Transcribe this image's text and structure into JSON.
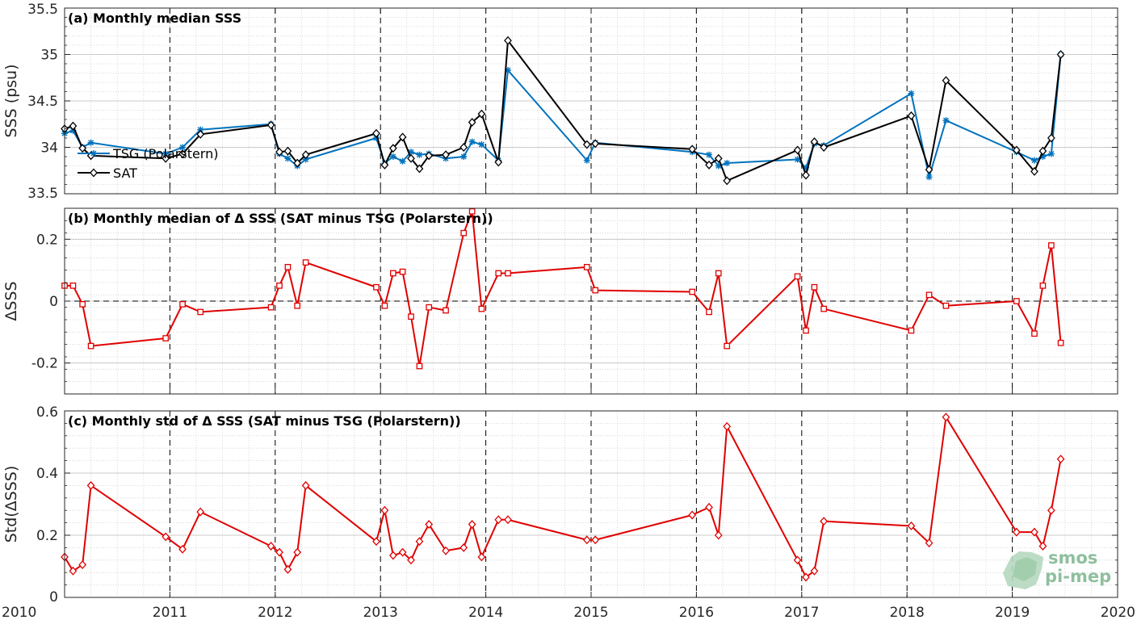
{
  "chart_data": [
    {
      "type": "line",
      "title": "(a) Monthly median SSS",
      "xlabel": "",
      "ylabel": "SSS (psu)",
      "xlim": [
        2010,
        2020
      ],
      "ylim": [
        33.5,
        35.5
      ],
      "yticks": [
        "33.5",
        "34",
        "34.5",
        "35",
        "35.5"
      ],
      "grid": true,
      "legend_placement": "bottom-left",
      "series": [
        {
          "name": "TSG (Polarstern)",
          "color": "#0072BD",
          "marker": "asterisk",
          "x": [
            2010.0,
            2010.08,
            2010.17,
            2010.25,
            2010.96,
            2011.12,
            2011.29,
            2011.96,
            2012.04,
            2012.12,
            2012.21,
            2012.29,
            2012.96,
            2013.04,
            2013.12,
            2013.21,
            2013.29,
            2013.37,
            2013.46,
            2013.62,
            2013.79,
            2013.87,
            2013.96,
            2014.12,
            2014.21,
            2014.96,
            2015.04,
            2015.96,
            2016.12,
            2016.21,
            2016.29,
            2016.96,
            2017.04,
            2017.12,
            2017.21,
            2018.04,
            2018.21,
            2018.37,
            2019.04,
            2019.21,
            2019.29,
            2019.37,
            2019.46
          ],
          "values": [
            34.15,
            34.18,
            34.0,
            34.05,
            33.93,
            34.0,
            34.19,
            34.25,
            33.93,
            33.88,
            33.8,
            33.87,
            34.1,
            33.83,
            33.9,
            33.85,
            33.95,
            33.92,
            33.93,
            33.88,
            33.9,
            34.06,
            34.03,
            33.86,
            34.83,
            33.86,
            34.05,
            33.95,
            33.92,
            33.8,
            33.83,
            33.87,
            33.78,
            34.04,
            34.02,
            34.58,
            33.68,
            34.29,
            33.95,
            33.86,
            33.9,
            33.93,
            35.0
          ]
        },
        {
          "name": "SAT",
          "color": "#000000",
          "marker": "diamond",
          "x": [
            2010.0,
            2010.08,
            2010.17,
            2010.25,
            2010.96,
            2011.12,
            2011.29,
            2011.96,
            2012.04,
            2012.12,
            2012.21,
            2012.29,
            2012.96,
            2013.04,
            2013.12,
            2013.21,
            2013.29,
            2013.37,
            2013.46,
            2013.62,
            2013.79,
            2013.87,
            2013.96,
            2014.12,
            2014.21,
            2014.96,
            2015.04,
            2015.96,
            2016.12,
            2016.21,
            2016.29,
            2016.96,
            2017.04,
            2017.12,
            2017.21,
            2018.04,
            2018.21,
            2018.37,
            2019.04,
            2019.21,
            2019.29,
            2019.37,
            2019.46
          ],
          "values": [
            34.2,
            34.23,
            33.99,
            33.91,
            33.88,
            33.93,
            34.14,
            34.24,
            33.95,
            33.96,
            33.83,
            33.92,
            34.15,
            33.81,
            33.99,
            34.11,
            33.88,
            33.77,
            33.91,
            33.92,
            34.0,
            34.27,
            34.36,
            33.84,
            35.15,
            34.03,
            34.04,
            33.98,
            33.81,
            33.88,
            33.64,
            33.97,
            33.7,
            34.06,
            34.0,
            34.34,
            33.76,
            34.72,
            33.97,
            33.74,
            33.96,
            34.1,
            35.0
          ]
        }
      ]
    },
    {
      "type": "line",
      "title": "(b) Monthly median of Δ SSS (SAT minus TSG (Polarstern))",
      "xlabel": "",
      "ylabel": "ΔSSS",
      "xlim": [
        2010,
        2020
      ],
      "ylim": [
        -0.3,
        0.3
      ],
      "yticks": [
        "-0.2",
        "0",
        "0.2"
      ],
      "grid": true,
      "zero_line": true,
      "series": [
        {
          "color": "#E00000",
          "marker": "square",
          "x": [
            2010.0,
            2010.08,
            2010.17,
            2010.25,
            2010.96,
            2011.12,
            2011.29,
            2011.96,
            2012.04,
            2012.12,
            2012.21,
            2012.29,
            2012.96,
            2013.04,
            2013.12,
            2013.21,
            2013.29,
            2013.37,
            2013.46,
            2013.62,
            2013.79,
            2013.87,
            2013.96,
            2014.12,
            2014.21,
            2014.96,
            2015.04,
            2015.96,
            2016.12,
            2016.21,
            2016.29,
            2016.96,
            2017.04,
            2017.12,
            2017.21,
            2018.04,
            2018.21,
            2018.37,
            2019.04,
            2019.21,
            2019.29,
            2019.37,
            2019.46
          ],
          "values": [
            0.05,
            0.05,
            -0.01,
            -0.145,
            -0.12,
            -0.01,
            -0.035,
            -0.02,
            0.05,
            0.11,
            -0.015,
            0.125,
            0.045,
            -0.015,
            0.09,
            0.095,
            -0.05,
            -0.21,
            -0.02,
            -0.03,
            0.22,
            0.29,
            -0.025,
            0.09,
            0.09,
            0.11,
            0.035,
            0.03,
            -0.035,
            0.09,
            -0.145,
            0.08,
            -0.095,
            0.045,
            -0.025,
            -0.095,
            0.02,
            -0.015,
            0.0,
            -0.105,
            0.05,
            0.18,
            -0.135
          ]
        }
      ]
    },
    {
      "type": "line",
      "title": "(c) Monthly std of Δ SSS (SAT minus TSG (Polarstern))",
      "xlabel": "",
      "ylabel": "Std(ΔSSS)",
      "xlim": [
        2010,
        2020
      ],
      "ylim": [
        0,
        0.6
      ],
      "yticks": [
        "0",
        "0.2",
        "0.4",
        "0.6"
      ],
      "xticks": [
        "2010",
        "2011",
        "2012",
        "2013",
        "2014",
        "2015",
        "2016",
        "2017",
        "2018",
        "2019",
        "2020"
      ],
      "grid": true,
      "series": [
        {
          "color": "#E00000",
          "marker": "diamond",
          "x": [
            2010.0,
            2010.08,
            2010.17,
            2010.25,
            2010.96,
            2011.12,
            2011.29,
            2011.96,
            2012.04,
            2012.12,
            2012.21,
            2012.29,
            2012.96,
            2013.04,
            2013.12,
            2013.21,
            2013.29,
            2013.37,
            2013.46,
            2013.62,
            2013.79,
            2013.87,
            2013.96,
            2014.12,
            2014.21,
            2014.96,
            2015.04,
            2015.96,
            2016.12,
            2016.21,
            2016.29,
            2016.96,
            2017.04,
            2017.12,
            2017.21,
            2018.04,
            2018.21,
            2018.37,
            2019.04,
            2019.21,
            2019.29,
            2019.37,
            2019.46
          ],
          "values": [
            0.13,
            0.085,
            0.105,
            0.36,
            0.195,
            0.155,
            0.275,
            0.165,
            0.145,
            0.09,
            0.145,
            0.36,
            0.18,
            0.28,
            0.135,
            0.145,
            0.12,
            0.18,
            0.235,
            0.15,
            0.16,
            0.235,
            0.13,
            0.25,
            0.25,
            0.185,
            0.185,
            0.265,
            0.29,
            0.2,
            0.55,
            0.12,
            0.065,
            0.085,
            0.245,
            0.23,
            0.175,
            0.58,
            0.21,
            0.21,
            0.165,
            0.28,
            0.445
          ]
        }
      ]
    }
  ],
  "logo": {
    "line1": "smos",
    "line2": "pi-mep",
    "color": "#8fbf9e"
  }
}
